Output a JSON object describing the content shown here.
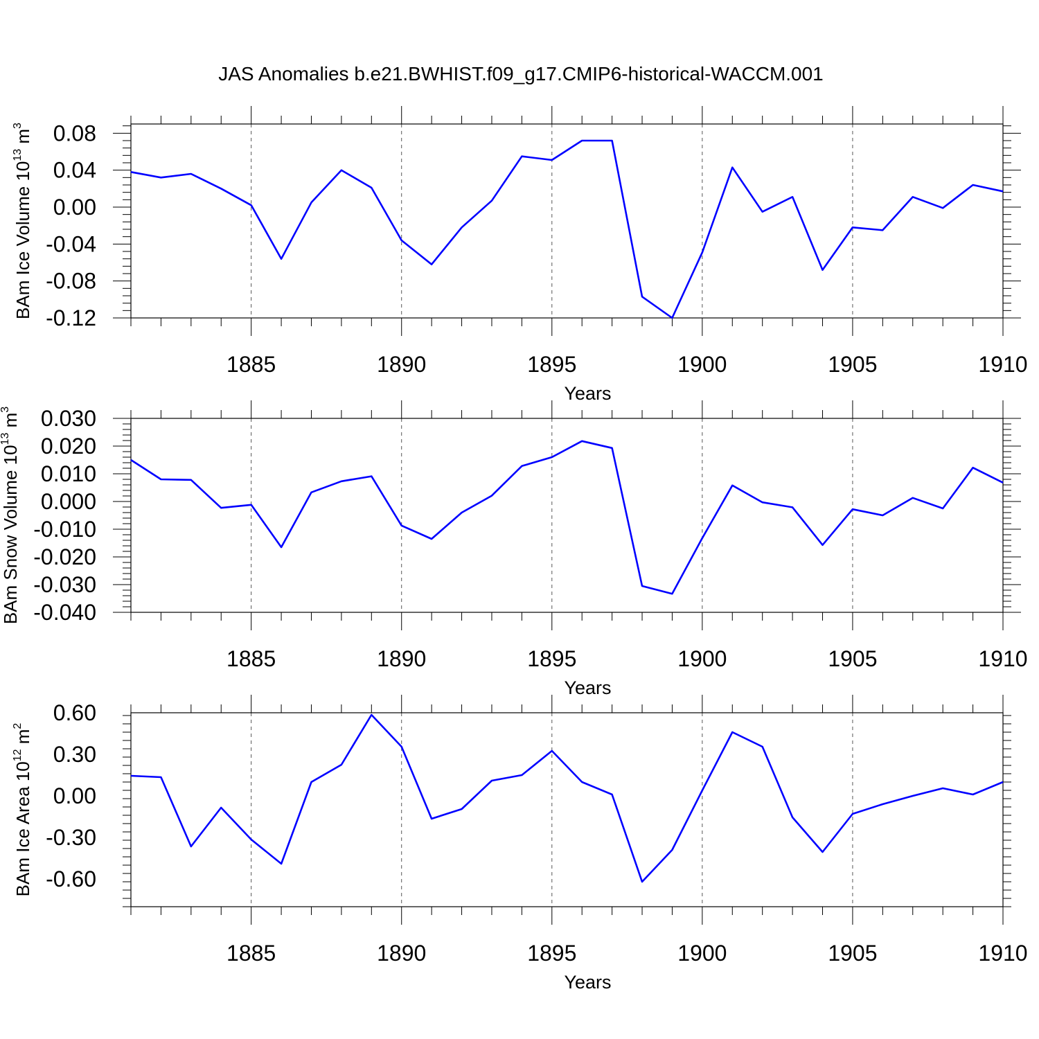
{
  "title": "JAS Anomalies b.e21.BWHIST.f09_g17.CMIP6-historical-WACCM.001",
  "colors": {
    "series": "#0000ff",
    "frame": "#000000",
    "grid": "#555555"
  },
  "chart_data": [
    {
      "type": "line",
      "ylabel_main": "BAm Ice Volume 10",
      "ylabel_exp": "13",
      "ylabel_unit": " m",
      "ylabel_unit_exp": "3",
      "xlabel": "Years",
      "xlim": [
        1881,
        1910
      ],
      "ylim": [
        -0.12,
        0.09
      ],
      "xticks": [
        1885,
        1890,
        1895,
        1900,
        1905,
        1910
      ],
      "yticks": [
        -0.12,
        -0.08,
        -0.04,
        0.0,
        0.04,
        0.08
      ],
      "ytick_labels": [
        "-0.12",
        "-0.08",
        "-0.04",
        "0.00",
        "0.04",
        "0.08"
      ],
      "grid_x": true,
      "x": [
        1881,
        1882,
        1883,
        1884,
        1885,
        1886,
        1887,
        1888,
        1889,
        1890,
        1891,
        1892,
        1893,
        1894,
        1895,
        1896,
        1897,
        1898,
        1899,
        1900,
        1901,
        1902,
        1903,
        1904,
        1905,
        1906,
        1907,
        1908,
        1909,
        1910
      ],
      "values": [
        0.038,
        0.032,
        0.036,
        0.02,
        0.002,
        -0.056,
        0.005,
        0.04,
        0.021,
        -0.036,
        -0.062,
        -0.022,
        0.007,
        0.055,
        0.051,
        0.072,
        0.072,
        -0.097,
        -0.12,
        -0.049,
        0.043,
        -0.005,
        0.011,
        -0.068,
        -0.022,
        -0.025,
        0.011,
        -0.001,
        0.024,
        0.017
      ]
    },
    {
      "type": "line",
      "ylabel_main": "BAm Snow Volume 10",
      "ylabel_exp": "13",
      "ylabel_unit": " m",
      "ylabel_unit_exp": "3",
      "xlabel": "Years",
      "xlim": [
        1881,
        1910
      ],
      "ylim": [
        -0.04,
        0.03
      ],
      "xticks": [
        1885,
        1890,
        1895,
        1900,
        1905,
        1910
      ],
      "yticks": [
        -0.04,
        -0.03,
        -0.02,
        -0.01,
        0.0,
        0.01,
        0.02,
        0.03
      ],
      "ytick_labels": [
        "-0.040",
        "-0.030",
        "-0.020",
        "-0.010",
        "0.000",
        "0.010",
        "0.020",
        "0.030"
      ],
      "grid_x": true,
      "x": [
        1881,
        1882,
        1883,
        1884,
        1885,
        1886,
        1887,
        1888,
        1889,
        1890,
        1891,
        1892,
        1893,
        1894,
        1895,
        1896,
        1897,
        1898,
        1899,
        1900,
        1901,
        1902,
        1903,
        1904,
        1905,
        1906,
        1907,
        1908,
        1909,
        1910
      ],
      "values": [
        0.015,
        0.008,
        0.0078,
        -0.0023,
        -0.0012,
        -0.0165,
        0.0033,
        0.0073,
        0.0091,
        -0.0087,
        -0.0135,
        -0.004,
        0.0021,
        0.0128,
        0.016,
        0.0218,
        0.0193,
        -0.0305,
        -0.0333,
        -0.0132,
        0.0058,
        -0.0003,
        -0.0021,
        -0.0157,
        -0.0028,
        -0.005,
        0.0013,
        -0.0025,
        0.0122,
        0.0068
      ]
    },
    {
      "type": "line",
      "ylabel_main": "BAm Ice Area 10",
      "ylabel_exp": "12",
      "ylabel_unit": " m",
      "ylabel_unit_exp": "2",
      "xlabel": "Years",
      "xlim": [
        1881,
        1910
      ],
      "ylim": [
        -0.8,
        0.6
      ],
      "xticks": [
        1885,
        1890,
        1895,
        1900,
        1905,
        1910
      ],
      "yticks": [
        -0.6,
        -0.3,
        0.0,
        0.3,
        0.6
      ],
      "ytick_labels": [
        "-0.60",
        "-0.30",
        "0.00",
        "0.30",
        "0.60"
      ],
      "grid_x": true,
      "x": [
        1881,
        1882,
        1883,
        1884,
        1885,
        1886,
        1887,
        1888,
        1889,
        1890,
        1891,
        1892,
        1893,
        1894,
        1895,
        1896,
        1897,
        1898,
        1899,
        1900,
        1901,
        1902,
        1903,
        1904,
        1905,
        1906,
        1907,
        1908,
        1909,
        1910
      ],
      "values": [
        0.145,
        0.135,
        -0.365,
        -0.085,
        -0.315,
        -0.49,
        0.1,
        0.225,
        0.585,
        0.355,
        -0.165,
        -0.095,
        0.11,
        0.15,
        0.325,
        0.1,
        0.01,
        -0.62,
        -0.39,
        0.04,
        0.46,
        0.355,
        -0.155,
        -0.405,
        -0.13,
        -0.06,
        0.0,
        0.055,
        0.01,
        0.1
      ]
    }
  ]
}
